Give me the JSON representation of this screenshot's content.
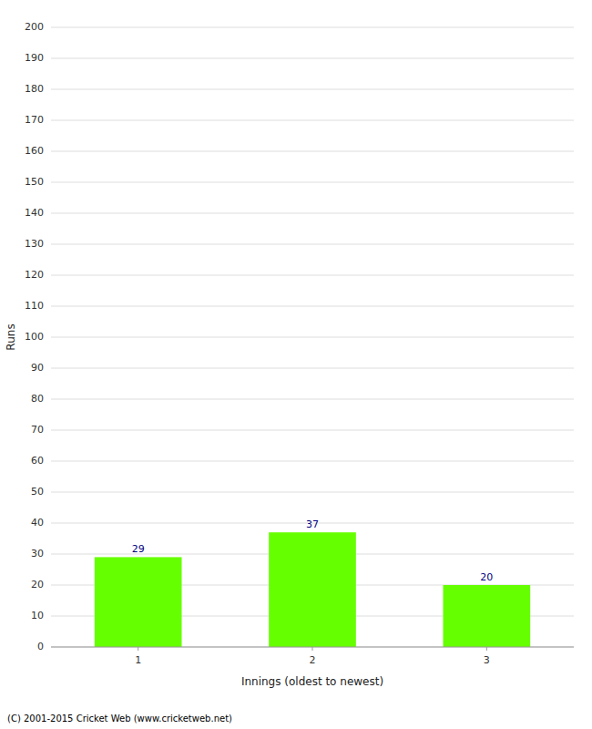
{
  "chart_data": {
    "type": "bar",
    "categories": [
      "1",
      "2",
      "3"
    ],
    "values": [
      29,
      37,
      20
    ],
    "color": "#66ff00",
    "x_label": "Innings (oldest to newest)",
    "y_label": "Runs",
    "ylim": [
      0,
      200
    ],
    "yticks": [
      0,
      10,
      20,
      30,
      40,
      50,
      60,
      70,
      80,
      90,
      100,
      110,
      120,
      130,
      140,
      150,
      160,
      170,
      180,
      190,
      200
    ],
    "grid": true,
    "data_labels": true,
    "annotations": [
      "(C) 2001-2015 Cricket Web (www.cricketweb.net)"
    ]
  }
}
